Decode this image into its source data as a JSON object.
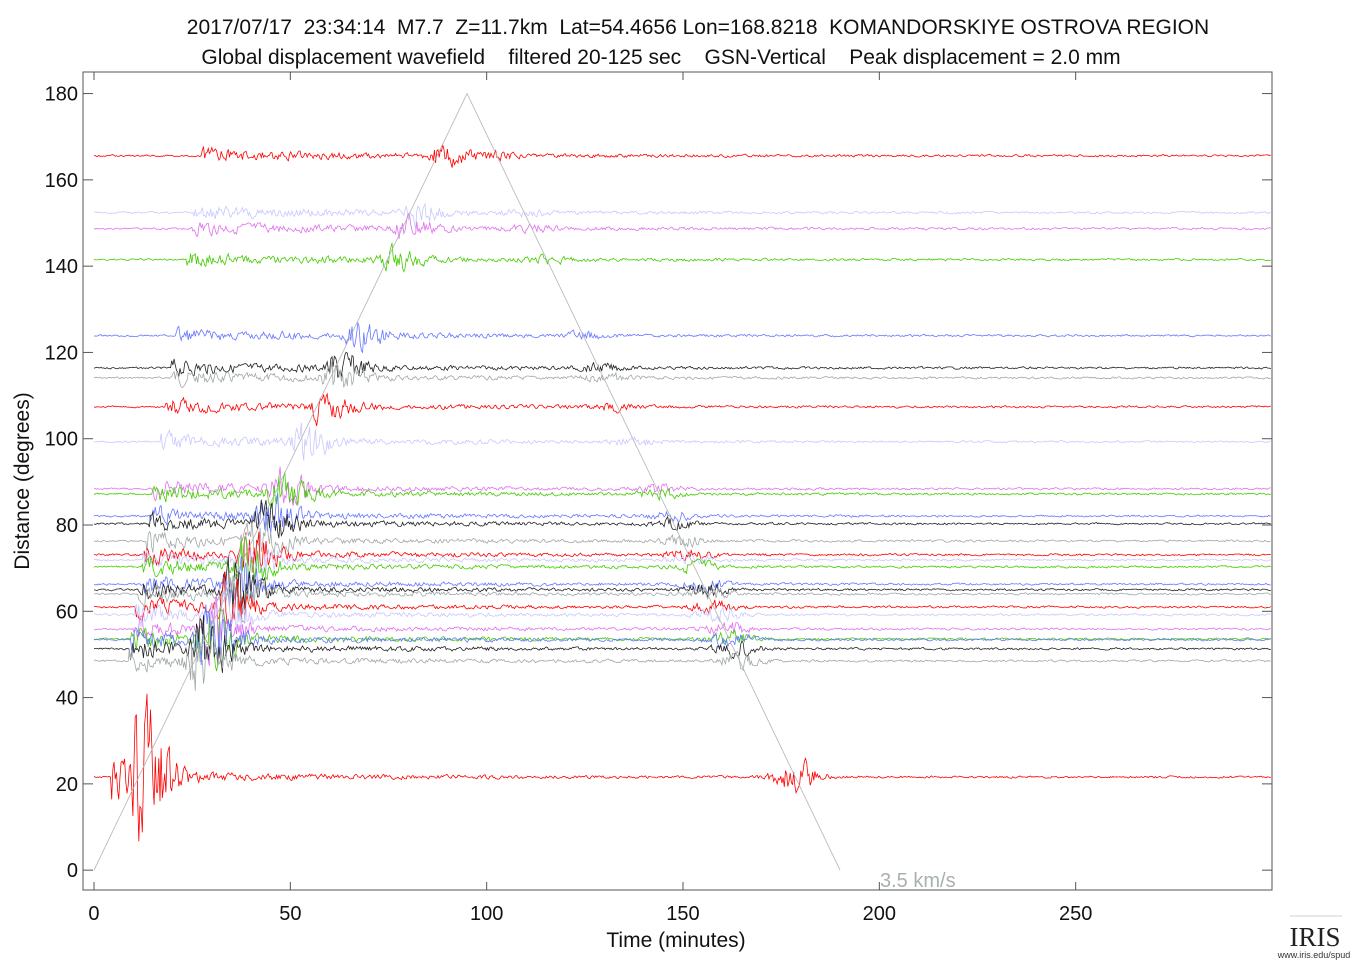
{
  "chart_data": {
    "type": "line",
    "title": "2017/07/17  23:34:14  M7.7  Z=11.7km  Lat=54.4656 Lon=168.8218  KOMANDORSKIYE OSTROVA REGION",
    "subtitle": "Global displacement wavefield    filtered 20-125 sec    GSN-Vertical    Peak displacement = 2.0 mm",
    "xlabel": "Time (minutes)",
    "ylabel": "Distance (degrees)",
    "xlim": [
      -2.8,
      300
    ],
    "ylim": [
      -4.6,
      185
    ],
    "xticks": [
      0,
      50,
      100,
      150,
      200,
      250
    ],
    "yticks": [
      0,
      20,
      40,
      60,
      80,
      100,
      120,
      140,
      160,
      180
    ],
    "grid": false,
    "velocity_line": {
      "label": "3.5 km/s",
      "color": "#b4b4b4",
      "points": [
        [
          0,
          0
        ],
        [
          95,
          180
        ],
        [
          190,
          0
        ]
      ]
    },
    "traces": [
      {
        "distance": 165.6,
        "color": "#ff0000"
      },
      {
        "distance": 152.4,
        "color": "#c8c8ff"
      },
      {
        "distance": 148.7,
        "color": "#e070f0"
      },
      {
        "distance": 141.5,
        "color": "#44cc00"
      },
      {
        "distance": 123.9,
        "color": "#6677ff"
      },
      {
        "distance": 116.4,
        "color": "#222222"
      },
      {
        "distance": 114.1,
        "color": "#a0a8a8"
      },
      {
        "distance": 107.4,
        "color": "#ff0000"
      },
      {
        "distance": 99.3,
        "color": "#c8c8ff"
      },
      {
        "distance": 88.4,
        "color": "#e070f0"
      },
      {
        "distance": 87.2,
        "color": "#44cc00"
      },
      {
        "distance": 82.1,
        "color": "#6677ff"
      },
      {
        "distance": 80.3,
        "color": "#222222"
      },
      {
        "distance": 76.3,
        "color": "#a0a8a8"
      },
      {
        "distance": 73.1,
        "color": "#ff0000"
      },
      {
        "distance": 71.9,
        "color": "#c8c8ff"
      },
      {
        "distance": 70.3,
        "color": "#44cc00"
      },
      {
        "distance": 66.3,
        "color": "#6677ff"
      },
      {
        "distance": 65.0,
        "color": "#222222"
      },
      {
        "distance": 64.0,
        "color": "#a0a8a8"
      },
      {
        "distance": 61.0,
        "color": "#ff0000"
      },
      {
        "distance": 59.2,
        "color": "#c8c8ff"
      },
      {
        "distance": 55.9,
        "color": "#e070f0"
      },
      {
        "distance": 53.6,
        "color": "#44cc00"
      },
      {
        "distance": 53.4,
        "color": "#6677ff"
      },
      {
        "distance": 51.3,
        "color": "#222222"
      },
      {
        "distance": 48.5,
        "color": "#a0a8a8"
      },
      {
        "distance": 21.6,
        "color": "#ff0000"
      }
    ]
  },
  "logo": {
    "text": "IRIS",
    "url_text": "www.iris.edu/spud"
  }
}
